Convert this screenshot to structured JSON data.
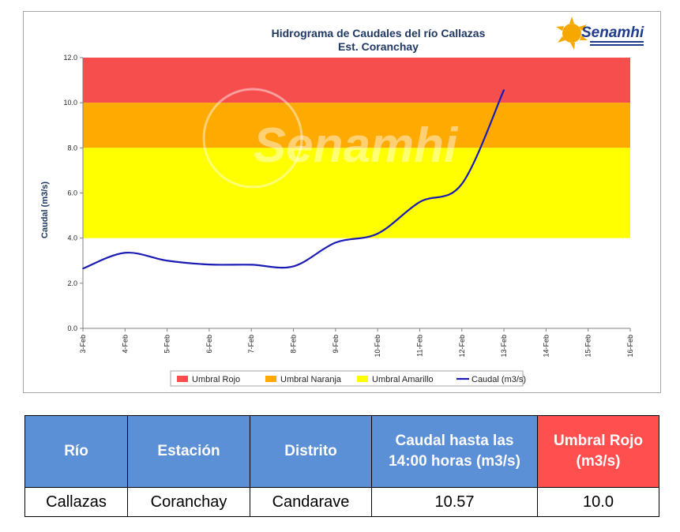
{
  "colors": {
    "umbral_rojo": "#f64d4d",
    "umbral_naranja": "#ffaa00",
    "umbral_amarillo": "#ffff00",
    "caudal_line": "#1a1ab4",
    "table_header": "#5b8fd6",
    "table_header_red": "#ff4f4f"
  },
  "logo": {
    "text": "Senamhi",
    "icon": "sun-logo-icon",
    "watermark": "Senamhi"
  },
  "chart_data": {
    "type": "line",
    "title": "Hidrograma de Caudales del río Callazas",
    "subtitle": "Est. Coranchay",
    "ylabel": "Caudal (m3/s)",
    "xlabel": "",
    "ylim": [
      0,
      12
    ],
    "yticks": [
      "0.0",
      "2.0",
      "4.0",
      "6.0",
      "8.0",
      "10.0",
      "12.0"
    ],
    "categories": [
      "3-Feb",
      "4-Feb",
      "5-Feb",
      "6-Feb",
      "7-Feb",
      "8-Feb",
      "9-Feb",
      "10-Feb",
      "11-Feb",
      "12-Feb",
      "13-Feb",
      "14-Feb",
      "15-Feb",
      "16-Feb"
    ],
    "bands": [
      {
        "name": "Umbral Rojo",
        "from": 10,
        "to": 12
      },
      {
        "name": "Umbral Naranja",
        "from": 8,
        "to": 10
      },
      {
        "name": "Umbral Amarillo",
        "from": 4,
        "to": 8
      }
    ],
    "series": [
      {
        "name": "Caudal (m3/s)",
        "x": [
          "3-Feb",
          "4-Feb",
          "5-Feb",
          "6-Feb",
          "7-Feb",
          "8-Feb",
          "9-Feb",
          "10-Feb",
          "11-Feb",
          "12-Feb",
          "13-Feb"
        ],
        "values": [
          2.65,
          3.35,
          3.0,
          2.83,
          2.82,
          2.75,
          3.8,
          4.2,
          5.6,
          6.4,
          10.57
        ]
      }
    ],
    "legend": [
      "Umbral Rojo",
      "Umbral Naranja",
      "Umbral Amarillo",
      "Caudal (m3/s)"
    ],
    "legend_position": "bottom",
    "grid": false
  },
  "table": {
    "headers": [
      "Río",
      "Estación",
      "Distrito",
      "Caudal hasta las 14:00 horas (m3/s)",
      "Umbral Rojo (m3/s)"
    ],
    "row": [
      "Callazas",
      "Coranchay",
      "Candarave",
      "10.57",
      "10.0"
    ]
  }
}
